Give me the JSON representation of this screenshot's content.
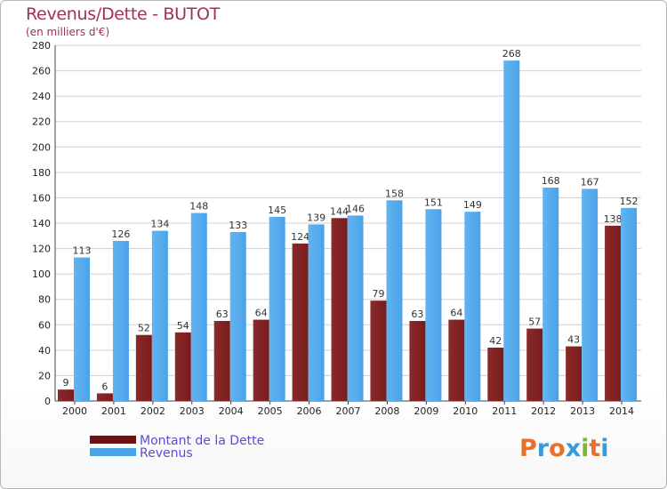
{
  "header": {
    "title": "Revenus/Dette - BUTOT",
    "subtitle": "(en milliers d'€)"
  },
  "legend": {
    "debt_label": "Montant de la Dette",
    "revenue_label": "Revenus"
  },
  "logo": {
    "text": "Proxiti",
    "letters": [
      "P",
      "r",
      "o",
      "x",
      "i",
      "t",
      "i"
    ],
    "colors": [
      "#e8702a",
      "#3a9ad9",
      "#e8702a",
      "#3a9ad9",
      "#7ab830",
      "#e8702a",
      "#3a9ad9"
    ]
  },
  "colors": {
    "debt": "#7a1c1c",
    "debt_light": "#8a2a2a",
    "revenue": "#4aa3e8",
    "revenue_light": "#62b4f0",
    "grid": "#d0d0d0"
  },
  "chart_data": {
    "type": "bar",
    "title": "Revenus/Dette - BUTOT",
    "subtitle": "(en milliers d'€)",
    "xlabel": "",
    "ylabel": "",
    "ylim": [
      0,
      280
    ],
    "yticks": [
      0,
      20,
      40,
      60,
      80,
      100,
      120,
      140,
      160,
      180,
      200,
      220,
      240,
      260,
      280
    ],
    "grid": true,
    "legend_position": "bottom-left",
    "categories": [
      "2000",
      "2001",
      "2002",
      "2003",
      "2004",
      "2005",
      "2006",
      "2007",
      "2008",
      "2009",
      "2010",
      "2011",
      "2012",
      "2013",
      "2014"
    ],
    "series": [
      {
        "name": "Montant de la Dette",
        "values": [
          9,
          6,
          52,
          54,
          63,
          64,
          124,
          144,
          79,
          63,
          64,
          42,
          57,
          43,
          138
        ]
      },
      {
        "name": "Revenus",
        "values": [
          113,
          126,
          134,
          148,
          133,
          145,
          139,
          146,
          158,
          151,
          149,
          268,
          168,
          167,
          152
        ]
      }
    ]
  }
}
